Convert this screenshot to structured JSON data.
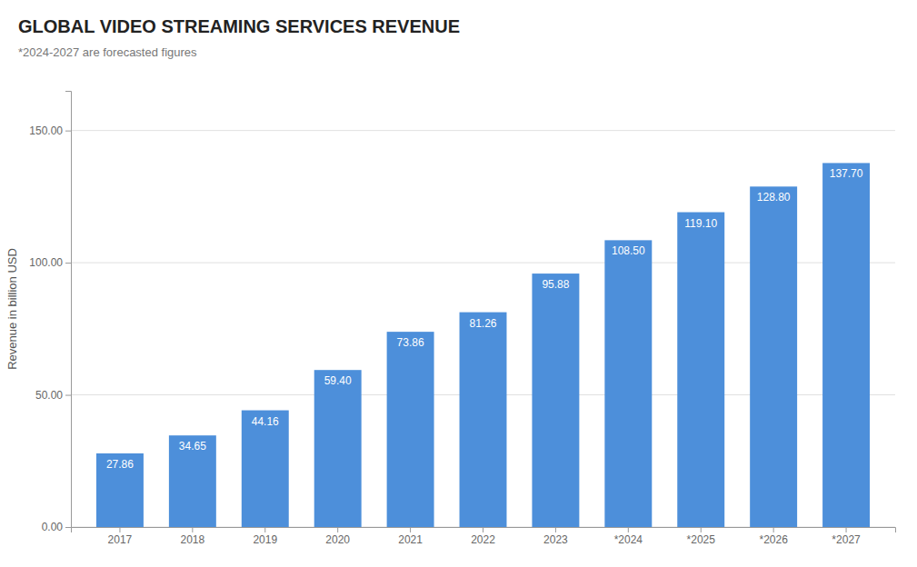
{
  "chart_data": {
    "type": "bar",
    "title": "GLOBAL VIDEO STREAMING SERVICES REVENUE",
    "subtitle": "*2024-2027 are forecasted figures",
    "ylabel": "Revenue in billion USD",
    "categories": [
      "2017",
      "2018",
      "2019",
      "2020",
      "2021",
      "2022",
      "2023",
      "*2024",
      "*2025",
      "*2026",
      "*2027"
    ],
    "values": [
      27.86,
      34.65,
      44.16,
      59.4,
      73.86,
      81.26,
      95.88,
      108.5,
      119.1,
      128.8,
      137.7
    ],
    "value_labels": [
      "27.86",
      "34.65",
      "44.16",
      "59.40",
      "73.86",
      "81.26",
      "95.88",
      "108.50",
      "119.10",
      "128.80",
      "137.70"
    ],
    "color": "#4d8fda",
    "ylim": [
      0,
      165
    ],
    "yticks": [
      {
        "value": 0,
        "label": "0.00"
      },
      {
        "value": 50,
        "label": "50.00"
      },
      {
        "value": 100,
        "label": "100.00"
      },
      {
        "value": 150,
        "label": "150.00"
      }
    ],
    "grid": true,
    "data_labels": true
  }
}
